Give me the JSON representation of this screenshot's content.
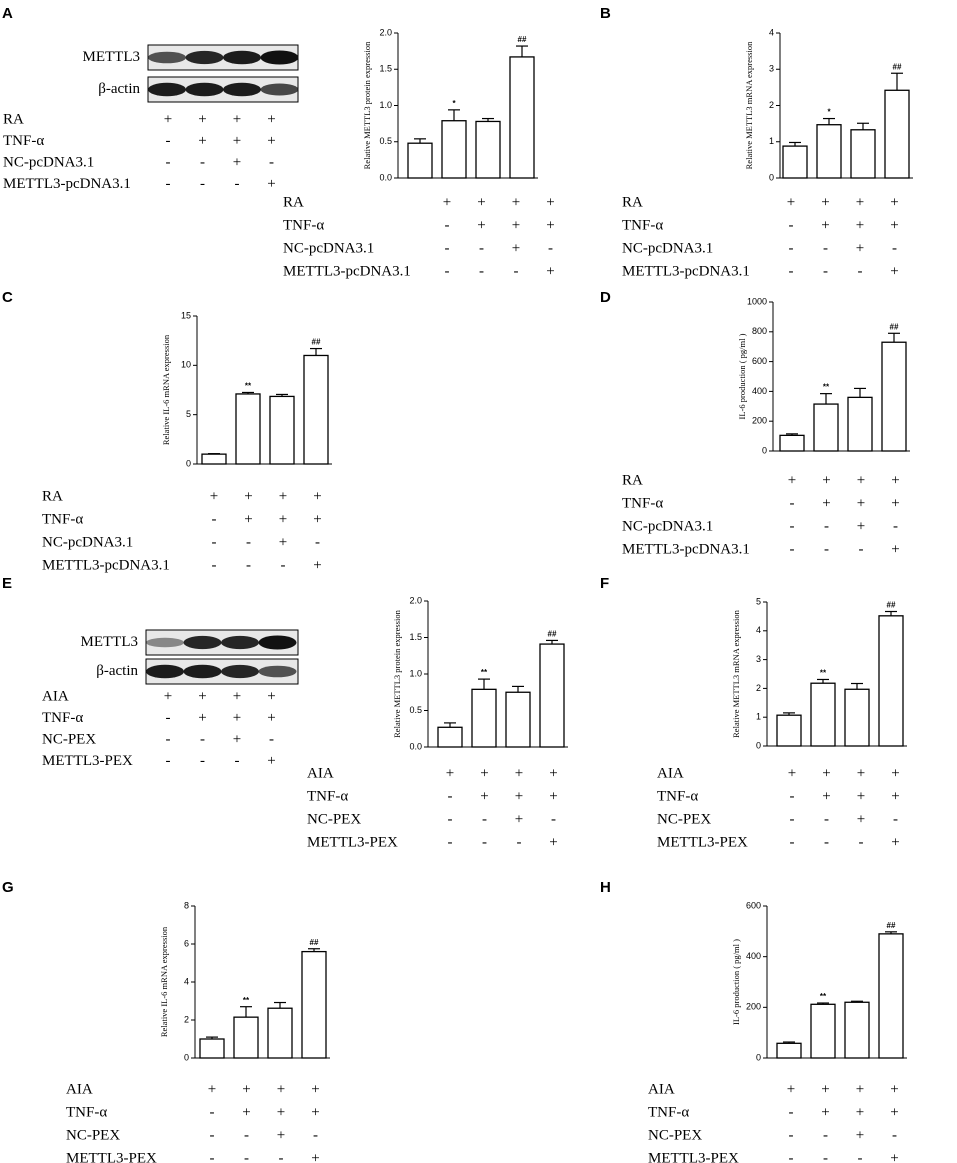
{
  "panel_labels": [
    "A",
    "B",
    "C",
    "D",
    "E",
    "F",
    "G",
    "H"
  ],
  "blots": [
    {
      "bands": [
        "METTL3",
        "β-actin"
      ],
      "conditions": [
        {
          "label": "RA",
          "marks": [
            "+",
            "+",
            "+",
            "+"
          ]
        },
        {
          "label": "TNF-α",
          "marks": [
            "-",
            "+",
            "+",
            "+"
          ]
        },
        {
          "label": "NC-pcDNA3.1",
          "marks": [
            "-",
            "-",
            "+",
            "-"
          ]
        },
        {
          "label": "METTL3-pcDNA3.1",
          "marks": [
            "-",
            "-",
            "-",
            "+"
          ]
        }
      ]
    },
    {
      "bands": [
        "METTL3",
        "β-actin"
      ],
      "conditions": [
        {
          "label": "AIA",
          "marks": [
            "+",
            "+",
            "+",
            "+"
          ]
        },
        {
          "label": "TNF-α",
          "marks": [
            "-",
            "+",
            "+",
            "+"
          ]
        },
        {
          "label": "NC-PEX",
          "marks": [
            "-",
            "-",
            "+",
            "-"
          ]
        },
        {
          "label": "METTL3-PEX",
          "marks": [
            "-",
            "-",
            "-",
            "+"
          ]
        }
      ]
    }
  ],
  "chart_data": [
    {
      "type": "bar",
      "ylabel": "Relative METTL3 protein expression",
      "color": "#ffffff",
      "values": [
        0.48,
        0.79,
        0.78,
        1.67
      ],
      "errors": [
        0.06,
        0.15,
        0.04,
        0.15
      ],
      "annotations": [
        null,
        "*",
        null,
        "##"
      ],
      "ylim": [
        0,
        2
      ],
      "yticks": [
        {
          "value": 0,
          "label": "0.0"
        },
        0.5,
        {
          "value": 1,
          "label": "1.0"
        },
        1.5,
        {
          "value": 2,
          "label": "2.0"
        }
      ],
      "conditions": [
        {
          "label": "RA",
          "marks": [
            "+",
            "+",
            "+",
            "+"
          ]
        },
        {
          "label": "TNF-α",
          "marks": [
            "-",
            "+",
            "+",
            "+"
          ]
        },
        {
          "label": "NC-pcDNA3.1",
          "marks": [
            "-",
            "-",
            "+",
            "-"
          ]
        },
        {
          "label": "METTL3-pcDNA3.1",
          "marks": [
            "-",
            "-",
            "-",
            "+"
          ]
        }
      ]
    },
    {
      "type": "bar",
      "ylabel": "Relative METTL3 mRNA expression",
      "color": "#ffffff",
      "values": [
        0.88,
        1.47,
        1.33,
        2.42
      ],
      "errors": [
        0.1,
        0.17,
        0.18,
        0.47
      ],
      "annotations": [
        null,
        "*",
        null,
        "##"
      ],
      "ylim": [
        0,
        4
      ],
      "yticks": [
        0,
        1,
        2,
        3,
        4
      ],
      "conditions": [
        {
          "label": "RA",
          "marks": [
            "+",
            "+",
            "+",
            "+"
          ]
        },
        {
          "label": "TNF-α",
          "marks": [
            "-",
            "+",
            "+",
            "+"
          ]
        },
        {
          "label": "NC-pcDNA3.1",
          "marks": [
            "-",
            "-",
            "+",
            "-"
          ]
        },
        {
          "label": "METTL3-pcDNA3.1",
          "marks": [
            "-",
            "-",
            "-",
            "+"
          ]
        }
      ]
    },
    {
      "type": "bar",
      "ylabel": "Relative IL-6 mRNA expression",
      "color": "#ffffff",
      "values": [
        1.0,
        7.1,
        6.85,
        11.0
      ],
      "errors": [
        0.05,
        0.15,
        0.2,
        0.7
      ],
      "annotations": [
        null,
        "**",
        null,
        "##"
      ],
      "ylim": [
        0,
        15
      ],
      "yticks": [
        0,
        5,
        10,
        15
      ],
      "conditions": [
        {
          "label": "RA",
          "marks": [
            "+",
            "+",
            "+",
            "+"
          ]
        },
        {
          "label": "TNF-α",
          "marks": [
            "-",
            "+",
            "+",
            "+"
          ]
        },
        {
          "label": "NC-pcDNA3.1",
          "marks": [
            "-",
            "-",
            "+",
            "-"
          ]
        },
        {
          "label": "METTL3-pcDNA3.1",
          "marks": [
            "-",
            "-",
            "-",
            "+"
          ]
        }
      ]
    },
    {
      "type": "bar",
      "ylabel": "IL-6 production ( pg/ml )",
      "color": "#ffffff",
      "values": [
        105,
        315,
        360,
        730
      ],
      "errors": [
        10,
        70,
        60,
        60
      ],
      "annotations": [
        null,
        "**",
        null,
        "##"
      ],
      "ylim": [
        0,
        1000
      ],
      "yticks": [
        0,
        200,
        400,
        600,
        800,
        1000
      ],
      "conditions": [
        {
          "label": "RA",
          "marks": [
            "+",
            "+",
            "+",
            "+"
          ]
        },
        {
          "label": "TNF-α",
          "marks": [
            "-",
            "+",
            "+",
            "+"
          ]
        },
        {
          "label": "NC-pcDNA3.1",
          "marks": [
            "-",
            "-",
            "+",
            "-"
          ]
        },
        {
          "label": "METTL3-pcDNA3.1",
          "marks": [
            "-",
            "-",
            "-",
            "+"
          ]
        }
      ]
    },
    {
      "type": "bar",
      "ylabel": "Relative METTL3 protein expression",
      "color": "#ffffff",
      "values": [
        0.27,
        0.79,
        0.75,
        1.41
      ],
      "errors": [
        0.06,
        0.14,
        0.08,
        0.05
      ],
      "annotations": [
        null,
        "**",
        null,
        "##"
      ],
      "ylim": [
        0,
        2
      ],
      "yticks": [
        {
          "value": 0,
          "label": "0.0"
        },
        0.5,
        {
          "value": 1,
          "label": "1.0"
        },
        1.5,
        {
          "value": 2,
          "label": "2.0"
        }
      ],
      "conditions": [
        {
          "label": "AIA",
          "marks": [
            "+",
            "+",
            "+",
            "+"
          ]
        },
        {
          "label": "TNF-α",
          "marks": [
            "-",
            "+",
            "+",
            "+"
          ]
        },
        {
          "label": "NC-PEX",
          "marks": [
            "-",
            "-",
            "+",
            "-"
          ]
        },
        {
          "label": "METTL3-PEX",
          "marks": [
            "-",
            "-",
            "-",
            "+"
          ]
        }
      ]
    },
    {
      "type": "bar",
      "ylabel": "Relative METTL3 mRNA expression",
      "color": "#ffffff",
      "values": [
        1.07,
        2.18,
        1.97,
        4.52
      ],
      "errors": [
        0.08,
        0.13,
        0.2,
        0.15
      ],
      "annotations": [
        null,
        "**",
        null,
        "##"
      ],
      "ylim": [
        0,
        5
      ],
      "yticks": [
        0,
        1,
        2,
        3,
        4,
        5
      ],
      "conditions": [
        {
          "label": "AIA",
          "marks": [
            "+",
            "+",
            "+",
            "+"
          ]
        },
        {
          "label": "TNF-α",
          "marks": [
            "-",
            "+",
            "+",
            "+"
          ]
        },
        {
          "label": "NC-PEX",
          "marks": [
            "-",
            "-",
            "+",
            "-"
          ]
        },
        {
          "label": "METTL3-PEX",
          "marks": [
            "-",
            "-",
            "-",
            "+"
          ]
        }
      ]
    },
    {
      "type": "bar",
      "ylabel": "Relative IL-6 mRNA expression",
      "color": "#ffffff",
      "values": [
        1.0,
        2.15,
        2.62,
        5.6
      ],
      "errors": [
        0.1,
        0.55,
        0.3,
        0.15
      ],
      "annotations": [
        null,
        "**",
        null,
        "##"
      ],
      "ylim": [
        0,
        8
      ],
      "yticks": [
        0,
        2,
        4,
        6,
        8
      ],
      "conditions": [
        {
          "label": "AIA",
          "marks": [
            "+",
            "+",
            "+",
            "+"
          ]
        },
        {
          "label": "TNF-α",
          "marks": [
            "-",
            "+",
            "+",
            "+"
          ]
        },
        {
          "label": "NC-PEX",
          "marks": [
            "-",
            "-",
            "+",
            "-"
          ]
        },
        {
          "label": "METTL3-PEX",
          "marks": [
            "-",
            "-",
            "-",
            "+"
          ]
        }
      ]
    },
    {
      "type": "bar",
      "ylabel": "IL-6 production ( pg/ml )",
      "color": "#ffffff",
      "values": [
        58,
        212,
        220,
        490
      ],
      "errors": [
        5,
        5,
        4,
        8
      ],
      "annotations": [
        null,
        "**",
        null,
        "##"
      ],
      "ylim": [
        0,
        600
      ],
      "yticks": [
        0,
        200,
        400,
        600
      ],
      "conditions": [
        {
          "label": "AIA",
          "marks": [
            "+",
            "+",
            "+",
            "+"
          ]
        },
        {
          "label": "TNF-α",
          "marks": [
            "-",
            "+",
            "+",
            "+"
          ]
        },
        {
          "label": "NC-PEX",
          "marks": [
            "-",
            "-",
            "+",
            "-"
          ]
        },
        {
          "label": "METTL3-PEX",
          "marks": [
            "-",
            "-",
            "-",
            "+"
          ]
        }
      ]
    }
  ]
}
